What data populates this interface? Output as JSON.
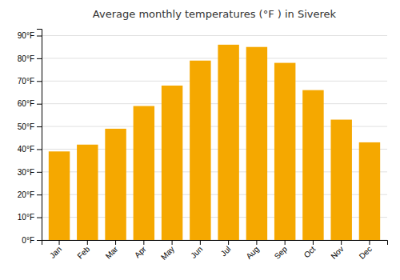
{
  "chart_data": {
    "type": "bar",
    "title": "Average monthly temperatures (°F ) in Siverek",
    "categories": [
      "Jan",
      "Feb",
      "Mar",
      "Apr",
      "May",
      "Jun",
      "Jul",
      "Aug",
      "Sep",
      "Oct",
      "Nov",
      "Dec"
    ],
    "values": [
      39,
      42,
      49,
      59,
      68,
      79,
      86,
      85,
      78,
      66,
      53,
      43
    ],
    "color": "#F5A800",
    "ylim": [
      0,
      93
    ],
    "yticks": [
      {
        "value": 0,
        "label": "0°F"
      },
      {
        "value": 10,
        "label": "10°F"
      },
      {
        "value": 20,
        "label": "20°F"
      },
      {
        "value": 30,
        "label": "30°F"
      },
      {
        "value": 40,
        "label": "40°F"
      },
      {
        "value": 50,
        "label": "50°F"
      },
      {
        "value": 60,
        "label": "60°F"
      },
      {
        "value": 70,
        "label": "70°F"
      },
      {
        "value": 80,
        "label": "80°F"
      },
      {
        "value": 90,
        "label": "90°F"
      }
    ],
    "grid": true
  }
}
